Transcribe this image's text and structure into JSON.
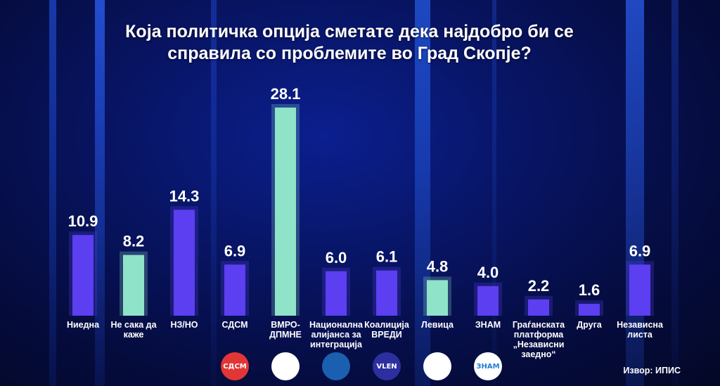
{
  "chart_data": {
    "type": "bar",
    "title": "Која политичка опција сметате дека најдобро би се справила со проблемите во Град Скопје?",
    "xlabel": "",
    "ylabel": "",
    "ylim": [
      0,
      28.1
    ],
    "grid": false,
    "categories": [
      "Ниедна",
      "Не сака да\nкаже",
      "НЗ/НО",
      "СДСМ",
      "ВМРО-\nДПМНЕ",
      "Национална\nалијанса за\nинтеграција",
      "Коалиција\nВРЕДИ",
      "Левица",
      "ЗНАМ",
      "Граѓанската\nплатформа\n„Независни\nзаедно“",
      "Друга",
      "Независна\nлиста"
    ],
    "values": [
      10.9,
      8.2,
      14.3,
      6.9,
      28.1,
      6.0,
      6.1,
      4.8,
      4.0,
      2.2,
      1.6,
      6.9
    ],
    "value_labels": [
      "10.9",
      "8.2",
      "14.3",
      "6.9",
      "28.1",
      "6.0",
      "6.1",
      "4.8",
      "4.0",
      "2.2",
      "1.6",
      "6.9"
    ],
    "bar_colors": [
      "#5b3ff0",
      "#8fe3c8",
      "#5b3ff0",
      "#5b3ff0",
      "#8fe3c8",
      "#5b3ff0",
      "#5b3ff0",
      "#8fe3c8",
      "#5b3ff0",
      "#5b3ff0",
      "#5b3ff0",
      "#5b3ff0"
    ]
  },
  "logos": [
    {
      "name": "sdsm-logo",
      "text": "СДСМ",
      "bg": "#e23636",
      "fg": "#ffffff"
    },
    {
      "name": "vmro-dpmne-logo",
      "text": "",
      "bg": "#ffffff",
      "fg": "#c0141c"
    },
    {
      "name": "alliance-logo",
      "text": "",
      "bg": "#1b5fb0",
      "fg": "#ffffff"
    },
    {
      "name": "vlen-logo",
      "text": "VLEN",
      "bg": "#2d2fa0",
      "fg": "#ffffff"
    },
    {
      "name": "levica-logo",
      "text": "",
      "bg": "#ffffff",
      "fg": "#d81e1e"
    },
    {
      "name": "znam-logo",
      "text": "ЗНАМ",
      "bg": "#ffffff",
      "fg": "#1e7fd0"
    }
  ],
  "source": "Извор: ИПИС"
}
